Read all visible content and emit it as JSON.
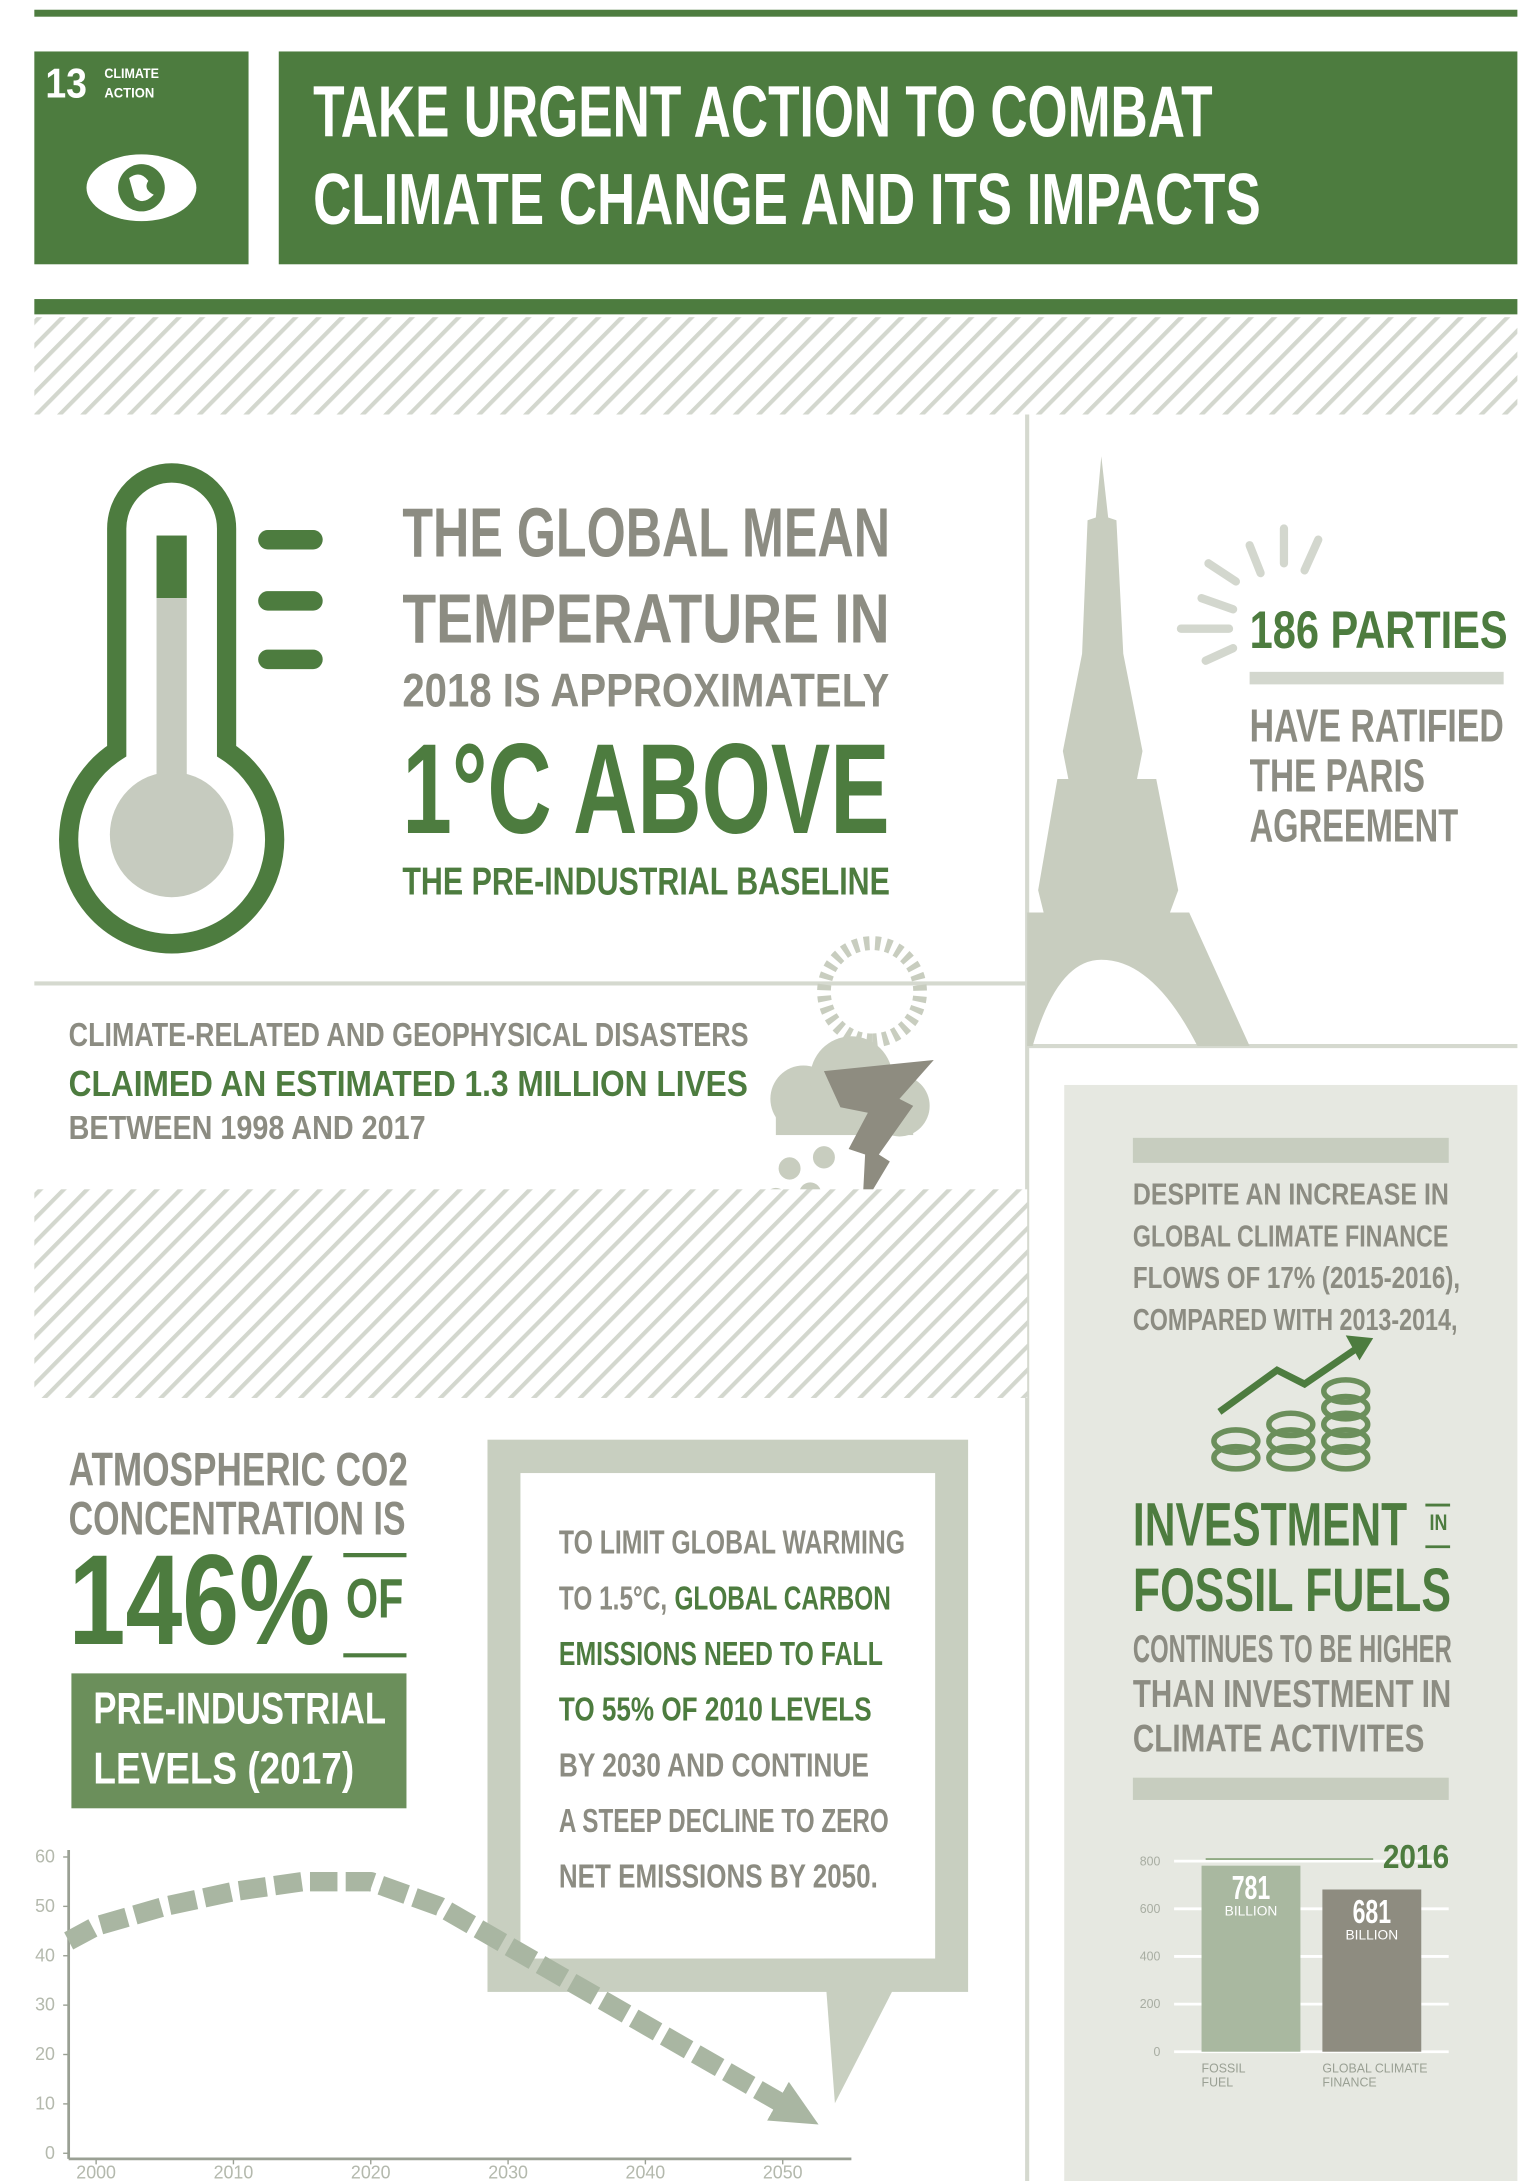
{
  "header": {
    "goal_number": "13",
    "goal_name": [
      "CLIMATE",
      "ACTION"
    ],
    "title": [
      "TAKE URGENT ACTION TO COMBAT",
      "CLIMATE CHANGE AND ITS IMPACTS"
    ]
  },
  "temperature": [
    "THE GLOBAL MEAN",
    "TEMPERATURE IN",
    "2018 IS APPROXIMATELY",
    "1°C ABOVE",
    "THE PRE-INDUSTRIAL BASELINE"
  ],
  "paris": {
    "headline": "186 PARTIES",
    "text": [
      "HAVE RATIFIED",
      "THE PARIS",
      "AGREEMENT"
    ]
  },
  "disasters": [
    "CLIMATE-RELATED AND GEOPHYSICAL DISASTERS",
    "CLAIMED AN ESTIMATED 1.3 MILLION LIVES",
    "BETWEEN 1998 AND 2017"
  ],
  "co2": {
    "text": [
      "ATMOSPHERIC CO2",
      "CONCENTRATION IS"
    ],
    "figure": "146%",
    "of": "OF",
    "box": [
      "PRE-INDUSTRIAL",
      "LEVELS (2017)"
    ]
  },
  "target": [
    [
      {
        "text": "TO LIMIT GLOBAL WARMING"
      }
    ],
    [
      {
        "text": "TO 1.5°C,"
      },
      {
        "text": "GLOBAL CARBON",
        "emphasis": true
      }
    ],
    [
      {
        "text": "EMISSIONS NEED TO FALL",
        "emphasis": true
      }
    ],
    [
      {
        "text": "TO 55% OF 2010 LEVELS",
        "emphasis": true
      }
    ],
    [
      {
        "text": "BY 2030 AND CONTINUE"
      }
    ],
    [
      {
        "text": "A STEEP DECLINE TO ZERO"
      }
    ],
    [
      {
        "text": "NET EMISSIONS BY 2050."
      }
    ]
  ],
  "finance": {
    "intro": [
      "DESPITE AN INCREASE IN",
      "GLOBAL CLIMATE FINANCE",
      "FLOWS OF 17% (2015-2016),",
      "COMPARED WITH 2013-2014,"
    ],
    "headline": [
      "INVESTMENT",
      "FOSSIL FUELS"
    ],
    "in": "IN",
    "text": [
      "CONTINUES TO BE HIGHER",
      "THAN INVESTMENT IN",
      "CLIMATE ACTIVITES"
    ]
  },
  "chart_data": [
    {
      "type": "line",
      "x": [
        1998,
        2000,
        2005,
        2010,
        2015,
        2020,
        2025,
        2030,
        2035,
        2040,
        2045,
        2050
      ],
      "values": [
        43,
        46,
        50,
        53,
        55,
        55,
        50,
        42,
        34,
        26,
        18,
        10
      ],
      "color": "#a9b6a2",
      "xlim": [
        1998,
        2055
      ],
      "ylim": [
        0,
        60
      ],
      "xticks": [
        2000,
        2010,
        2020,
        2030,
        2040,
        2050
      ],
      "yticks": [
        0,
        10,
        20,
        30,
        40,
        50,
        60
      ]
    },
    {
      "type": "bar",
      "title": "2016",
      "categories": [
        "FOSSIL FUEL",
        "GLOBAL CLIMATE FINANCE"
      ],
      "values": [
        781,
        681
      ],
      "unit": "BILLION",
      "colors": [
        "#a9b8a0",
        "#8e8c80"
      ],
      "ylim": [
        0,
        800
      ],
      "yticks": [
        0,
        200,
        400,
        600,
        800
      ],
      "grid": true
    }
  ]
}
